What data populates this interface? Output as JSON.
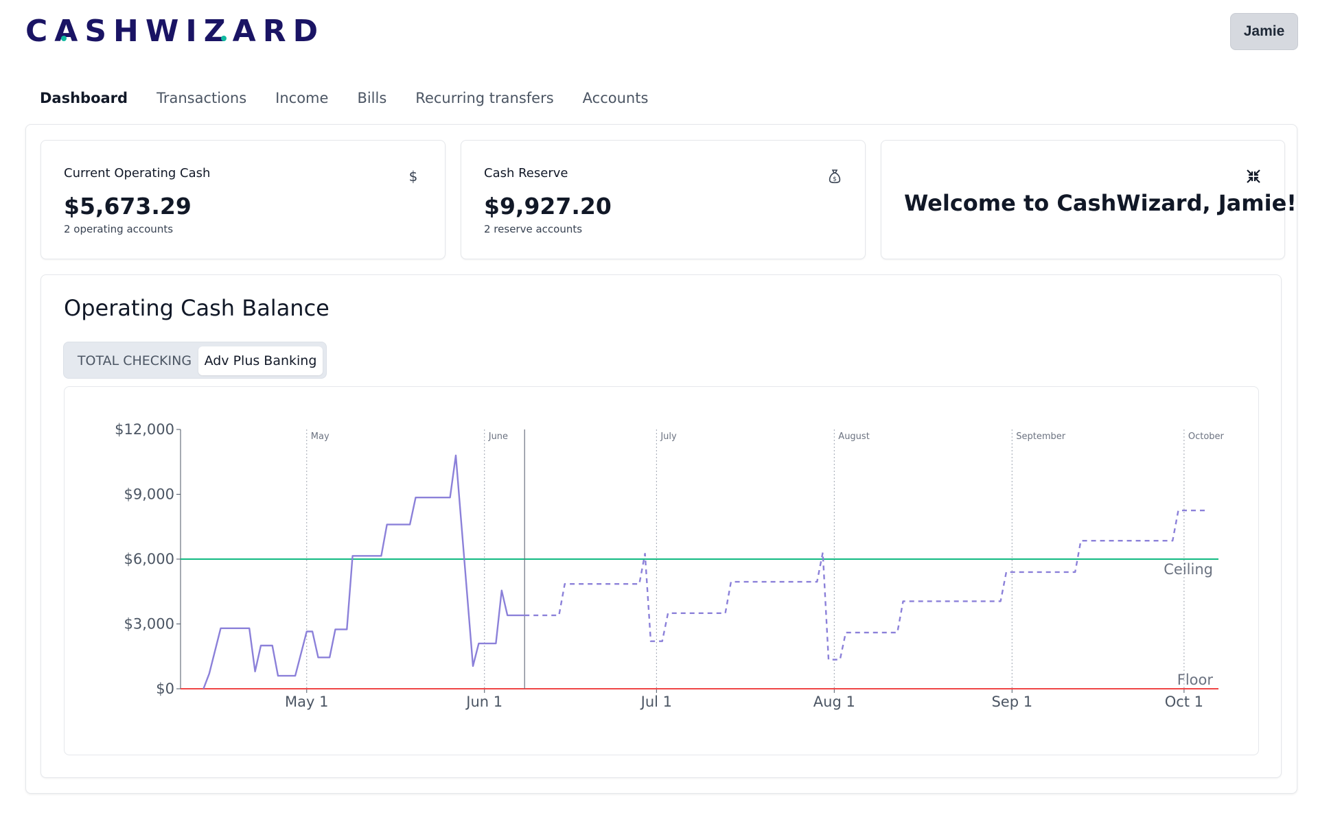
{
  "app": {
    "logo_text": "CASHWIZARD",
    "user_name": "Jamie"
  },
  "nav": {
    "items": [
      {
        "label": "Dashboard",
        "active": true
      },
      {
        "label": "Transactions",
        "active": false
      },
      {
        "label": "Income",
        "active": false
      },
      {
        "label": "Bills",
        "active": false
      },
      {
        "label": "Recurring transfers",
        "active": false
      },
      {
        "label": "Accounts",
        "active": false
      }
    ]
  },
  "cards": {
    "operating": {
      "label": "Current Operating Cash",
      "value": "$5,673.29",
      "sub": "2 operating accounts",
      "icon": "dollar-icon"
    },
    "reserve": {
      "label": "Cash Reserve",
      "value": "$9,927.20",
      "sub": "2 reserve accounts",
      "icon": "money-bag-icon"
    },
    "welcome": {
      "text": "Welcome to CashWizard, Jamie!",
      "icon": "collapse-icon"
    }
  },
  "balance_panel": {
    "title": "Operating Cash Balance",
    "tabs": [
      {
        "label": "TOTAL CHECKING",
        "selected": false
      },
      {
        "label": "Adv Plus Banking",
        "selected": true
      }
    ]
  },
  "colors": {
    "brand": "#1a1464",
    "accent_teal": "#10b9a0",
    "series": "#8b80d9",
    "ceiling": "#10b981",
    "floor": "#ef4444"
  },
  "chart_data": {
    "type": "line",
    "title": "",
    "xlabel": "",
    "ylabel": "",
    "ylim": [
      0,
      12000
    ],
    "y_ticks": [
      "$0",
      "$3,000",
      "$6,000",
      "$9,000",
      "$12,000"
    ],
    "x_ticks": [
      "May 1",
      "Jun 1",
      "Jul 1",
      "Aug 1",
      "Sep 1",
      "Oct 1"
    ],
    "month_markers": [
      "May",
      "June",
      "July",
      "August",
      "September",
      "October"
    ],
    "x_domain": [
      "2024-04-09",
      "2024-10-07"
    ],
    "today": "2024-06-08",
    "ceiling": {
      "label": "Ceiling",
      "value": 6000
    },
    "floor": {
      "label": "Floor",
      "value": 0
    },
    "series": [
      {
        "style": "solid",
        "points": [
          [
            "2024-04-13",
            0
          ],
          [
            "2024-04-14",
            700
          ],
          [
            "2024-04-16",
            2800
          ],
          [
            "2024-04-21",
            2800
          ],
          [
            "2024-04-22",
            800
          ],
          [
            "2024-04-23",
            2000
          ],
          [
            "2024-04-25",
            2000
          ],
          [
            "2024-04-26",
            600
          ],
          [
            "2024-04-29",
            600
          ],
          [
            "2024-05-01",
            2650
          ],
          [
            "2024-05-02",
            2650
          ],
          [
            "2024-05-03",
            1450
          ],
          [
            "2024-05-05",
            1450
          ],
          [
            "2024-05-06",
            2750
          ],
          [
            "2024-05-08",
            2750
          ],
          [
            "2024-05-09",
            6150
          ],
          [
            "2024-05-14",
            6150
          ],
          [
            "2024-05-15",
            7600
          ],
          [
            "2024-05-19",
            7600
          ],
          [
            "2024-05-20",
            8850
          ],
          [
            "2024-05-26",
            8850
          ],
          [
            "2024-05-27",
            10800
          ],
          [
            "2024-05-30",
            1050
          ],
          [
            "2024-05-31",
            2100
          ],
          [
            "2024-06-03",
            2100
          ],
          [
            "2024-06-04",
            4550
          ],
          [
            "2024-06-05",
            3400
          ],
          [
            "2024-06-08",
            3400
          ]
        ]
      },
      {
        "style": "dashed",
        "points": [
          [
            "2024-06-08",
            3400
          ],
          [
            "2024-06-14",
            3400
          ],
          [
            "2024-06-15",
            4850
          ],
          [
            "2024-06-28",
            4850
          ],
          [
            "2024-06-29",
            6250
          ],
          [
            "2024-06-30",
            2200
          ],
          [
            "2024-07-02",
            2200
          ],
          [
            "2024-07-03",
            3500
          ],
          [
            "2024-07-13",
            3500
          ],
          [
            "2024-07-14",
            4950
          ],
          [
            "2024-07-29",
            4950
          ],
          [
            "2024-07-30",
            6300
          ],
          [
            "2024-07-31",
            1350
          ],
          [
            "2024-08-02",
            1350
          ],
          [
            "2024-08-03",
            2600
          ],
          [
            "2024-08-12",
            2600
          ],
          [
            "2024-08-13",
            4050
          ],
          [
            "2024-08-30",
            4050
          ],
          [
            "2024-08-31",
            5400
          ],
          [
            "2024-09-12",
            5400
          ],
          [
            "2024-09-13",
            6850
          ],
          [
            "2024-09-29",
            6850
          ],
          [
            "2024-09-30",
            8250
          ],
          [
            "2024-10-05",
            8250
          ]
        ]
      }
    ]
  }
}
